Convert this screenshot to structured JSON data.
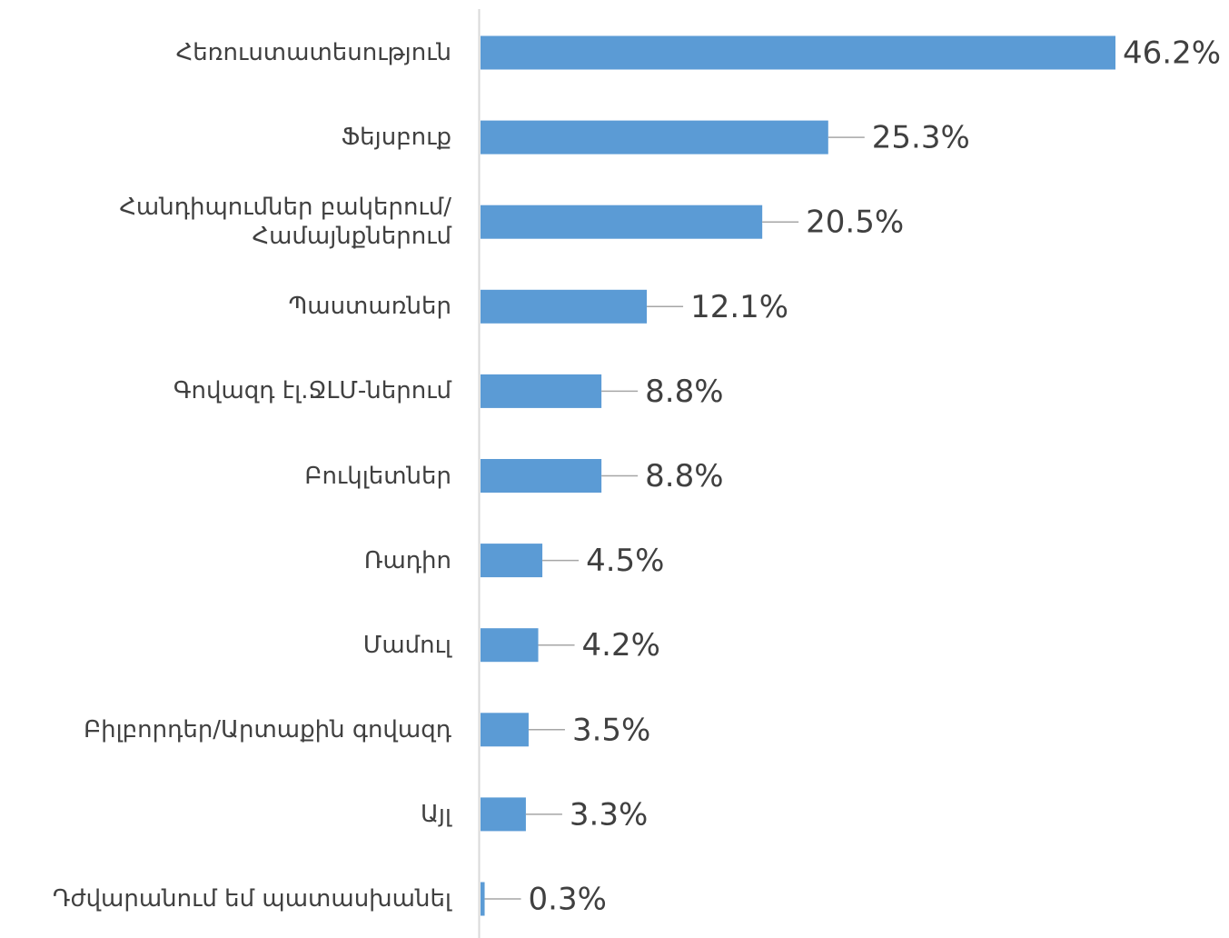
{
  "chart_data": {
    "type": "barh",
    "categories": [
      "Հեռուստատեսություն",
      "Ֆեյսբուք",
      "Հանդիպումներ բակերում/Համայնքներում",
      "Պաստառներ",
      "Գովազդ էլ.ՋԼՄ-ներում",
      "Բուկլետներ",
      "Ռադիո",
      "Մամուլ",
      "Բիլբորդեր/Արտաքին գովազդ",
      "Այլ",
      "Դժվարանում եմ պատասխանել"
    ],
    "values": [
      46.2,
      25.3,
      20.5,
      12.1,
      8.8,
      8.8,
      4.5,
      4.2,
      3.5,
      3.3,
      0.3
    ],
    "value_labels": [
      "46.2%",
      "25.3%",
      "20.5%",
      "12.1%",
      "8.8%",
      "8.8%",
      "4.5%",
      "4.2%",
      "3.5%",
      "3.3%",
      "0.3%"
    ],
    "color": "#5b9bd5"
  }
}
